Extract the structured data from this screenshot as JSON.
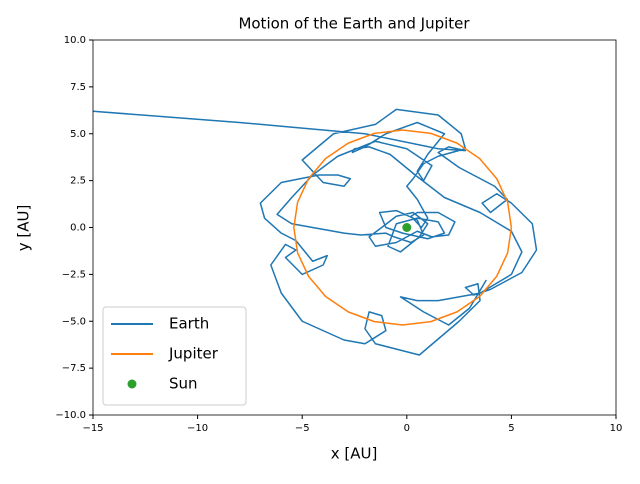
{
  "chart_data": {
    "type": "line",
    "title": "Motion of the Earth and Jupiter",
    "x_label": "x [AU]",
    "y_label": "y [AU]",
    "xlim": [
      -15,
      10
    ],
    "ylim": [
      -10,
      10
    ],
    "xticks": [
      {
        "value": -15,
        "label": "−15"
      },
      {
        "value": -10,
        "label": "−10"
      },
      {
        "value": -5,
        "label": "−5"
      },
      0,
      5,
      10
    ],
    "yticks": [
      {
        "value": -10,
        "label": "−10.0"
      },
      {
        "value": -7.5,
        "label": "−7.5"
      },
      {
        "value": -5,
        "label": "−5.0"
      },
      {
        "value": -2.5,
        "label": "−2.5"
      },
      {
        "value": 0,
        "label": "0.0"
      },
      2.5,
      {
        "value": 5,
        "label": "5.0"
      },
      7.5,
      {
        "value": 10,
        "label": "10.0"
      }
    ],
    "legend": "lower left",
    "series": [
      {
        "name": "Earth",
        "color": "#1f77b4",
        "marker": "line",
        "x": [
          -15,
          -8,
          -2,
          1.5,
          2.8,
          2,
          1.5,
          2.5,
          4.2,
          4.8,
          4,
          3.6,
          4.3,
          5,
          6,
          6.2,
          5.5,
          4,
          3.2,
          2.8,
          3.4,
          3.5,
          2.5,
          0.6,
          -1.5,
          -2,
          -1.8,
          -1.2,
          -1,
          -2,
          -3,
          -5,
          -6,
          -6.5,
          -5.8,
          -5.3,
          -5.8,
          -5,
          -4,
          -3.8,
          -4.5,
          -5.3,
          -6,
          -6.8,
          -7,
          -6,
          -4.2,
          -3.3,
          -2.7,
          -3,
          -4,
          -5,
          -3.5,
          -1.5,
          -0.5,
          1.5,
          2.6,
          2.8,
          1.5,
          0.8,
          0.3,
          0,
          0.5,
          1,
          0.7,
          0.2,
          0.5,
          1.5,
          2.3,
          2,
          1.2,
          0.5,
          -0.5,
          -1.5,
          -1.8,
          -1.2,
          -0.5,
          0.3,
          1,
          0.6,
          -0.3,
          -0.9,
          -0.5,
          0.5,
          1.5,
          1.8,
          1,
          -0.2,
          -1,
          -1.3,
          -0.5,
          0.5,
          0.8,
          0.2,
          -0.6,
          -1,
          -2.2,
          -3,
          -4,
          -5.5,
          -6.2,
          -5.5,
          -4.5,
          -3.3,
          -1.5,
          0,
          1.2,
          0.8,
          0.5,
          1,
          1.8,
          0.5,
          -1,
          -2,
          -2.6,
          -2.5,
          -1.8,
          -0.8,
          0.4,
          1.8,
          3.5,
          5,
          5.5,
          5,
          3.5,
          1.5,
          0.5,
          -0.3,
          0.8,
          2,
          3,
          3.8
        ],
        "values": [
          6.2,
          5.6,
          5,
          4.2,
          4.1,
          4.3,
          4,
          3.2,
          2.2,
          1.5,
          0.8,
          1.3,
          1.8,
          1.3,
          0.2,
          -1.2,
          -2.4,
          -3.3,
          -3.6,
          -3.2,
          -3,
          -3.9,
          -5,
          -6.8,
          -6.2,
          -5.4,
          -4.5,
          -4.7,
          -5.5,
          -6.2,
          -6,
          -5,
          -3.5,
          -2,
          -0.9,
          -1.2,
          -1.6,
          -2.5,
          -2,
          -1.5,
          -1.8,
          -0.7,
          -0.3,
          0.5,
          1.3,
          2.4,
          2.8,
          2.8,
          2.6,
          2.2,
          2.4,
          3.6,
          5,
          5.5,
          6.3,
          6,
          5,
          4.2,
          3.8,
          3.4,
          2.6,
          2.2,
          1.5,
          0.5,
          0,
          0.6,
          0.8,
          0.8,
          0.3,
          -0.4,
          -0.5,
          -0.2,
          -0.8,
          -1,
          -0.5,
          0,
          0.6,
          0.8,
          0.2,
          -0.5,
          -1.3,
          -1,
          0.2,
          0.5,
          0.3,
          -0.3,
          -0.6,
          -0.3,
          0,
          0.8,
          0.9,
          0.4,
          -0.4,
          -0.8,
          -0.5,
          -0.3,
          -0.4,
          -0.3,
          -0.1,
          0.2,
          0.7,
          1.6,
          2.8,
          3.8,
          4.6,
          4.2,
          3.3,
          2.5,
          3,
          3.9,
          5,
          5.6,
          5,
          4.3,
          4,
          4.2,
          4.3,
          3.9,
          2.8,
          1.6,
          0.8,
          -0.2,
          -1.3,
          -2.5,
          -3.5,
          -3.9,
          -3.9,
          -3.7,
          -4.5,
          -5.2,
          -4.3,
          -2.8
        ]
      },
      {
        "name": "Jupiter",
        "color": "#ff7f0e",
        "marker": "line",
        "x": [
          5,
          4.82,
          4.3,
          3.48,
          2.4,
          1.15,
          -0.2,
          -1.55,
          -2.8,
          -3.88,
          -4.7,
          -5.22,
          -5.4,
          -5.22,
          -4.7,
          -3.88,
          -2.8,
          -1.55,
          -0.2,
          1.15,
          2.4,
          3.48,
          4.3,
          4.82,
          5
        ],
        "values": [
          0,
          1.35,
          2.6,
          3.68,
          4.5,
          5.02,
          5.2,
          5.02,
          4.5,
          3.68,
          2.6,
          1.35,
          0,
          -1.35,
          -2.6,
          -3.68,
          -4.5,
          -5.02,
          -5.2,
          -5.02,
          -4.5,
          -3.68,
          -2.6,
          -1.35,
          0
        ]
      },
      {
        "name": "Sun",
        "color": "#2ca02c",
        "marker": "dot",
        "x": [
          0
        ],
        "values": [
          0
        ]
      }
    ]
  }
}
